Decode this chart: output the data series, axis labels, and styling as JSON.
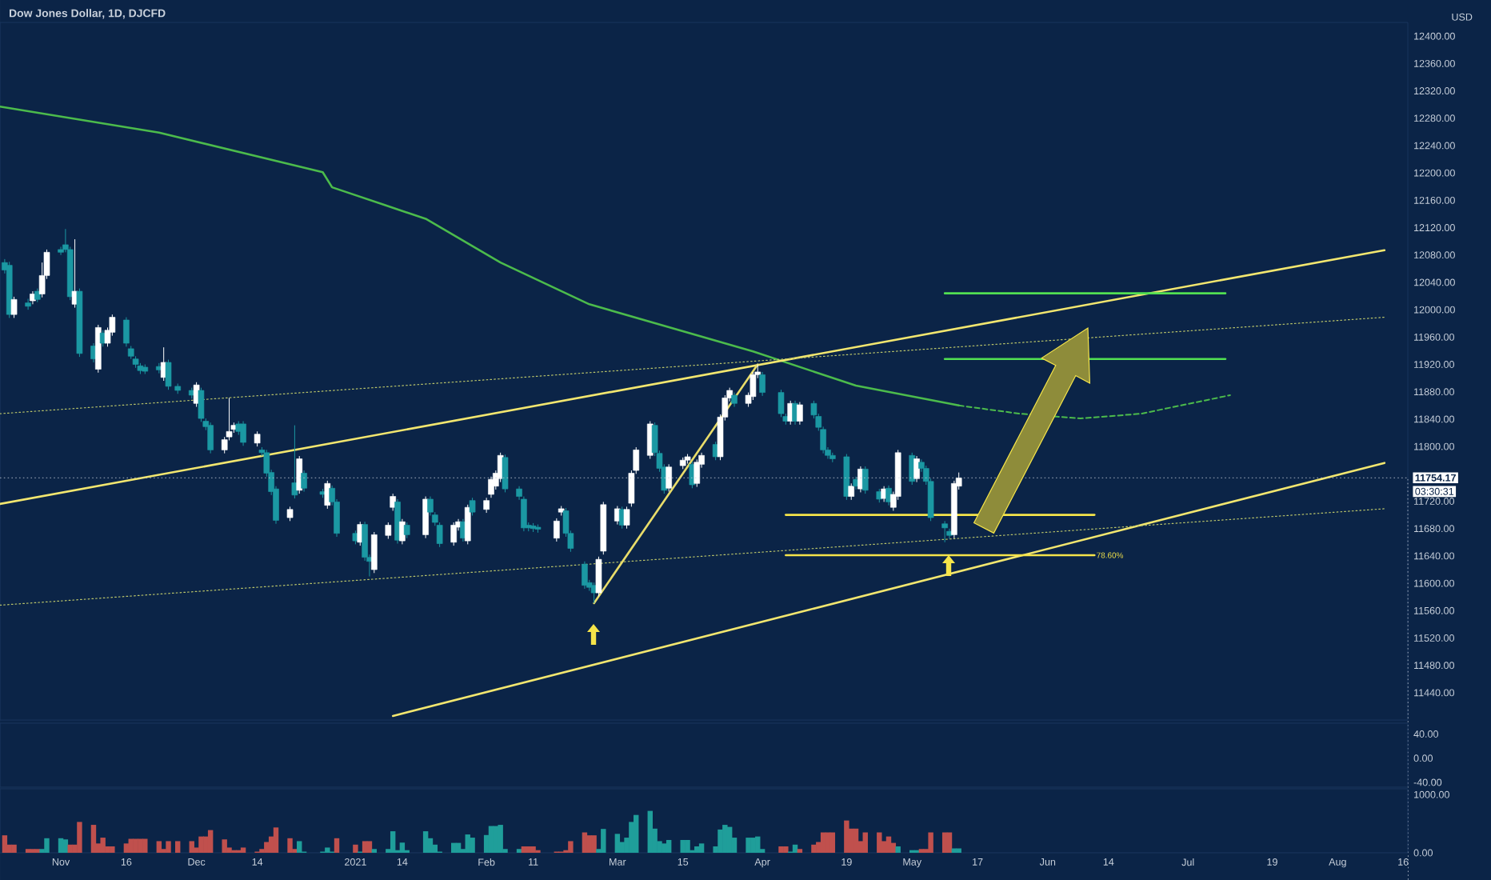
{
  "chart_data": [
    {
      "type": "candlestick",
      "title": "Dow Jones Dollar, 1D, DJCFD",
      "ylabel": "USD",
      "x": [
        "2020-10-21",
        "2020-10-22",
        "2020-10-23",
        "2020-10-26",
        "2020-10-27",
        "2020-10-28",
        "2020-10-29",
        "2020-10-30",
        "2020-11-02",
        "2020-11-03",
        "2020-11-04",
        "2020-11-05",
        "2020-11-06",
        "2020-11-09",
        "2020-11-10",
        "2020-11-11",
        "2020-11-12",
        "2020-11-13",
        "2020-11-16",
        "2020-11-17",
        "2020-11-18",
        "2020-11-19",
        "2020-11-20",
        "2020-11-23",
        "2020-11-24",
        "2020-11-25",
        "2020-11-27",
        "2020-11-30",
        "2020-12-01",
        "2020-12-02",
        "2020-12-03",
        "2020-12-04",
        "2020-12-07",
        "2020-12-08",
        "2020-12-09",
        "2020-12-10",
        "2020-12-11",
        "2020-12-14",
        "2020-12-15",
        "2020-12-16",
        "2020-12-17",
        "2020-12-18",
        "2020-12-21",
        "2020-12-22",
        "2020-12-23",
        "2020-12-24",
        "2020-12-28",
        "2020-12-29",
        "2020-12-30",
        "2020-12-31",
        "2021-01-04",
        "2021-01-05",
        "2021-01-06",
        "2021-01-07",
        "2021-01-08",
        "2021-01-11",
        "2021-01-12",
        "2021-01-13",
        "2021-01-14",
        "2021-01-15",
        "2021-01-19",
        "2021-01-20",
        "2021-01-21",
        "2021-01-22",
        "2021-01-25",
        "2021-01-26",
        "2021-01-27",
        "2021-01-28",
        "2021-01-29",
        "2021-02-01",
        "2021-02-02",
        "2021-02-03",
        "2021-02-04",
        "2021-02-05",
        "2021-02-08",
        "2021-02-09",
        "2021-02-10",
        "2021-02-11",
        "2021-02-12",
        "2021-02-16",
        "2021-02-17",
        "2021-02-18",
        "2021-02-19",
        "2021-02-22",
        "2021-02-23",
        "2021-02-24",
        "2021-02-25",
        "2021-02-26",
        "2021-03-01",
        "2021-03-02",
        "2021-03-03",
        "2021-03-04",
        "2021-03-05",
        "2021-03-08",
        "2021-03-09",
        "2021-03-10",
        "2021-03-11",
        "2021-03-12",
        "2021-03-15",
        "2021-03-16",
        "2021-03-17",
        "2021-03-18",
        "2021-03-19",
        "2021-03-22",
        "2021-03-23",
        "2021-03-24",
        "2021-03-25",
        "2021-03-26",
        "2021-03-29",
        "2021-03-30",
        "2021-03-31",
        "2021-04-01",
        "2021-04-05",
        "2021-04-06",
        "2021-04-07",
        "2021-04-08",
        "2021-04-09",
        "2021-04-12",
        "2021-04-13",
        "2021-04-14",
        "2021-04-15",
        "2021-04-16",
        "2021-04-19",
        "2021-04-20",
        "2021-04-21",
        "2021-04-22",
        "2021-04-23",
        "2021-04-26",
        "2021-04-27",
        "2021-04-28",
        "2021-04-29",
        "2021-04-30",
        "2021-05-03",
        "2021-05-04",
        "2021-05-05",
        "2021-05-06",
        "2021-05-07",
        "2021-05-10",
        "2021-05-11",
        "2021-05-12",
        "2021-05-13"
      ],
      "ohlc": [
        [
          12069,
          12074,
          12053,
          12058
        ],
        [
          12065,
          12070,
          11988,
          11993
        ],
        [
          11993,
          12019,
          11988,
          12015
        ],
        [
          12010,
          12016,
          12000,
          12005
        ],
        [
          12013,
          12027,
          12008,
          12023
        ],
        [
          12027,
          12031,
          12011,
          12015
        ],
        [
          12023,
          12069,
          12018,
          12050
        ],
        [
          12050,
          12088,
          12045,
          12084
        ],
        [
          12088,
          12092,
          12080,
          12084
        ],
        [
          12095,
          12118,
          12084,
          12088
        ],
        [
          12088,
          12092,
          12014,
          12019
        ],
        [
          12008,
          12103,
          12003,
          12027
        ],
        [
          12027,
          12031,
          11931,
          11936
        ],
        [
          11947,
          11951,
          11923,
          11928
        ],
        [
          11913,
          11978,
          11908,
          11974
        ],
        [
          11966,
          11970,
          11946,
          11951
        ],
        [
          11951,
          11974,
          11946,
          11970
        ],
        [
          11967,
          11993,
          11962,
          11989
        ],
        [
          11985,
          11989,
          11946,
          11951
        ],
        [
          11943,
          11947,
          11928,
          11932
        ],
        [
          11928,
          11932,
          11915,
          11920
        ],
        [
          11918,
          11922,
          11906,
          11911
        ],
        [
          11916,
          11920,
          11906,
          11910
        ],
        [
          11917,
          11922,
          11907,
          11912
        ],
        [
          11901,
          11945,
          11896,
          11923
        ],
        [
          11923,
          11927,
          11883,
          11888
        ],
        [
          11888,
          11892,
          11877,
          11882
        ],
        [
          11882,
          11886,
          11870,
          11875
        ],
        [
          11863,
          11894,
          11858,
          11890
        ],
        [
          11882,
          11886,
          11836,
          11841
        ],
        [
          11837,
          11841,
          11824,
          11829
        ],
        [
          11831,
          11835,
          11790,
          11795
        ],
        [
          11795,
          11814,
          11790,
          11810
        ],
        [
          11814,
          11871,
          11809,
          11822
        ],
        [
          11825,
          11835,
          11820,
          11831
        ],
        [
          11833,
          11837,
          11817,
          11822
        ],
        [
          11833,
          11837,
          11801,
          11806
        ],
        [
          11805,
          11822,
          11800,
          11818
        ],
        [
          11795,
          11799,
          11786,
          11791
        ],
        [
          11791,
          11795,
          11756,
          11761
        ],
        [
          11762,
          11766,
          11729,
          11734
        ],
        [
          11738,
          11742,
          11687,
          11692
        ],
        [
          11696,
          11712,
          11691,
          11708
        ],
        [
          11747,
          11831,
          11724,
          11729
        ],
        [
          11736,
          11786,
          11731,
          11782
        ],
        [
          11761,
          11765,
          11734,
          11739
        ],
        [
          11734,
          11738,
          11725,
          11730
        ],
        [
          11714,
          11750,
          11709,
          11746
        ],
        [
          11739,
          11743,
          11714,
          11719
        ],
        [
          11719,
          11723,
          11668,
          11673
        ],
        [
          11673,
          11677,
          11657,
          11662
        ],
        [
          11660,
          11690,
          11655,
          11686
        ],
        [
          11686,
          11690,
          11633,
          11638
        ],
        [
          11638,
          11642,
          11610,
          11632
        ],
        [
          11620,
          11675,
          11615,
          11671
        ],
        [
          11670,
          11689,
          11665,
          11685
        ],
        [
          11711,
          11731,
          11706,
          11727
        ],
        [
          11719,
          11723,
          11658,
          11663
        ],
        [
          11662,
          11694,
          11657,
          11690
        ],
        [
          11685,
          11689,
          11666,
          11671
        ],
        [
          11671,
          11727,
          11666,
          11723
        ],
        [
          11723,
          11727,
          11699,
          11704
        ],
        [
          11700,
          11704,
          11684,
          11689
        ],
        [
          11685,
          11689,
          11653,
          11658
        ],
        [
          11660,
          11689,
          11655,
          11685
        ],
        [
          11682,
          11694,
          11677,
          11690
        ],
        [
          11690,
          11694,
          11661,
          11666
        ],
        [
          11662,
          11715,
          11657,
          11711
        ],
        [
          11721,
          11725,
          11699,
          11704
        ],
        [
          11708,
          11725,
          11703,
          11721
        ],
        [
          11730,
          11756,
          11725,
          11752
        ],
        [
          11742,
          11765,
          11737,
          11761
        ],
        [
          11753,
          11791,
          11748,
          11787
        ],
        [
          11784,
          11788,
          11733,
          11738
        ],
        [
          11738,
          11742,
          11722,
          11727
        ],
        [
          11723,
          11727,
          11676,
          11681
        ],
        [
          11685,
          11689,
          11676,
          11681
        ],
        [
          11684,
          11688,
          11675,
          11680
        ],
        [
          11682,
          11686,
          11674,
          11679
        ],
        [
          11666,
          11695,
          11661,
          11691
        ],
        [
          11704,
          11713,
          11699,
          11709
        ],
        [
          11706,
          11710,
          11668,
          11673
        ],
        [
          11673,
          11677,
          11646,
          11651
        ],
        [
          11628,
          11632,
          11592,
          11597
        ],
        [
          11601,
          11605,
          11589,
          11594
        ],
        [
          11597,
          11601,
          11571,
          11586
        ],
        [
          11586,
          11639,
          11581,
          11635
        ],
        [
          11647,
          11719,
          11642,
          11715
        ],
        [
          11691,
          11713,
          11686,
          11709
        ],
        [
          11708,
          11712,
          11680,
          11685
        ],
        [
          11685,
          11712,
          11680,
          11708
        ],
        [
          11717,
          11765,
          11712,
          11761
        ],
        [
          11765,
          11799,
          11760,
          11795
        ],
        [
          11787,
          11837,
          11782,
          11833
        ],
        [
          11831,
          11835,
          11786,
          11791
        ],
        [
          11790,
          11794,
          11763,
          11768
        ],
        [
          11770,
          11774,
          11731,
          11736
        ],
        [
          11739,
          11774,
          11734,
          11770
        ],
        [
          11772,
          11784,
          11767,
          11780
        ],
        [
          11780,
          11789,
          11775,
          11785
        ],
        [
          11774,
          11778,
          11739,
          11744
        ],
        [
          11746,
          11781,
          11741,
          11777
        ],
        [
          11774,
          11791,
          11769,
          11787
        ],
        [
          11803,
          11807,
          11780,
          11785
        ],
        [
          11785,
          11847,
          11780,
          11843
        ],
        [
          11843,
          11875,
          11838,
          11871
        ],
        [
          11871,
          11886,
          11866,
          11882
        ],
        [
          11875,
          11879,
          11858,
          11863
        ],
        [
          11863,
          11879,
          11858,
          11875
        ],
        [
          11873,
          11909,
          11868,
          11905
        ],
        [
          11905,
          11920,
          11900,
          11909
        ],
        [
          11905,
          11909,
          11874,
          11879
        ],
        [
          11879,
          11883,
          11843,
          11848
        ],
        [
          11844,
          11848,
          11832,
          11837
        ],
        [
          11837,
          11867,
          11832,
          11863
        ],
        [
          11863,
          11867,
          11832,
          11837
        ],
        [
          11837,
          11865,
          11832,
          11861
        ],
        [
          11863,
          11867,
          11841,
          11846
        ],
        [
          11844,
          11848,
          11823,
          11828
        ],
        [
          11825,
          11829,
          11790,
          11795
        ],
        [
          11795,
          11799,
          11782,
          11787
        ],
        [
          11787,
          11791,
          11777,
          11782
        ],
        [
          11785,
          11789,
          11722,
          11727
        ],
        [
          11727,
          11746,
          11722,
          11742
        ],
        [
          11752,
          11756,
          11737,
          11742
        ],
        [
          11738,
          11771,
          11733,
          11767
        ],
        [
          11767,
          11771,
          11731,
          11736
        ],
        [
          11734,
          11738,
          11718,
          11723
        ],
        [
          11724,
          11742,
          11719,
          11738
        ],
        [
          11739,
          11743,
          11714,
          11719
        ],
        [
          11711,
          11734,
          11706,
          11730
        ],
        [
          11727,
          11795,
          11722,
          11791
        ],
        [
          11787,
          11791,
          11744,
          11749
        ],
        [
          11753,
          11786,
          11748,
          11782
        ],
        [
          11777,
          11781,
          11763,
          11768
        ],
        [
          11768,
          11772,
          11744,
          11749
        ],
        [
          11749,
          11753,
          11691,
          11696
        ],
        [
          11687,
          11691,
          11660,
          11681
        ],
        [
          11676,
          11680,
          11665,
          11670
        ],
        [
          11671,
          11750,
          11666,
          11746
        ],
        [
          11742,
          11762,
          11737,
          11754
        ]
      ],
      "colors": [
        "#1b98a3",
        "#1b98a3",
        "#ffffff",
        "#1b98a3",
        "#ffffff",
        "#1b98a3",
        "#ffffff",
        "#ffffff",
        "#1b98a3",
        "#1b98a3",
        "#1b98a3",
        "#ffffff",
        "#1b98a3",
        "#1b98a3",
        "#ffffff",
        "#1b98a3",
        "#ffffff",
        "#ffffff",
        "#1b98a3",
        "#1b98a3",
        "#1b98a3",
        "#1b98a3",
        "#1b98a3",
        "#1b98a3",
        "#ffffff",
        "#1b98a3",
        "#1b98a3",
        "#1b98a3",
        "#ffffff",
        "#1b98a3",
        "#1b98a3",
        "#1b98a3",
        "#ffffff",
        "#ffffff",
        "#ffffff",
        "#1b98a3",
        "#1b98a3",
        "#ffffff",
        "#1b98a3",
        "#1b98a3",
        "#1b98a3",
        "#1b98a3",
        "#ffffff",
        "#1b98a3",
        "#ffffff",
        "#1b98a3",
        "#1b98a3",
        "#ffffff",
        "#1b98a3",
        "#1b98a3",
        "#1b98a3",
        "#ffffff",
        "#1b98a3",
        "#1b98a3",
        "#ffffff",
        "#ffffff",
        "#ffffff",
        "#1b98a3",
        "#ffffff",
        "#1b98a3",
        "#ffffff",
        "#1b98a3",
        "#1b98a3",
        "#1b98a3",
        "#ffffff",
        "#ffffff",
        "#1b98a3",
        "#ffffff",
        "#1b98a3",
        "#ffffff",
        "#ffffff",
        "#ffffff",
        "#ffffff",
        "#1b98a3",
        "#1b98a3",
        "#1b98a3",
        "#1b98a3",
        "#1b98a3",
        "#1b98a3",
        "#ffffff",
        "#ffffff",
        "#1b98a3",
        "#1b98a3",
        "#1b98a3",
        "#1b98a3",
        "#1b98a3",
        "#ffffff",
        "#ffffff",
        "#ffffff",
        "#1b98a3",
        "#ffffff",
        "#ffffff",
        "#ffffff",
        "#ffffff",
        "#1b98a3",
        "#1b98a3",
        "#1b98a3",
        "#ffffff",
        "#ffffff",
        "#ffffff",
        "#1b98a3",
        "#ffffff",
        "#ffffff",
        "#1b98a3",
        "#ffffff",
        "#ffffff",
        "#ffffff",
        "#1b98a3",
        "#ffffff",
        "#ffffff",
        "#ffffff",
        "#1b98a3",
        "#1b98a3",
        "#1b98a3",
        "#ffffff",
        "#1b98a3",
        "#ffffff",
        "#1b98a3",
        "#1b98a3",
        "#1b98a3",
        "#1b98a3",
        "#1b98a3",
        "#1b98a3",
        "#ffffff",
        "#1b98a3",
        "#ffffff",
        "#1b98a3",
        "#1b98a3",
        "#ffffff",
        "#1b98a3",
        "#ffffff",
        "#ffffff",
        "#1b98a3",
        "#ffffff",
        "#1b98a3",
        "#1b98a3",
        "#1b98a3",
        "#1b98a3",
        "#1b98a3",
        "#ffffff",
        "#ffffff"
      ],
      "xlim": [
        "2020-10-20",
        "2021-08-17"
      ],
      "ylim": [
        11400,
        12420
      ],
      "yticks": [
        {
          "value": 11440,
          "label": "11440.00"
        },
        {
          "value": 11480,
          "label": "11480.00"
        },
        {
          "value": 11520,
          "label": "11520.00"
        },
        {
          "value": 11560,
          "label": "11560.00"
        },
        {
          "value": 11600,
          "label": "11600.00"
        },
        {
          "value": 11640,
          "label": "11640.00"
        },
        {
          "value": 11680,
          "label": "11680.00"
        },
        {
          "value": 11720,
          "label": "11720.00"
        },
        {
          "value": 11800,
          "label": "11800.00"
        },
        {
          "value": 11840,
          "label": "11840.00"
        },
        {
          "value": 11880,
          "label": "11880.00"
        },
        {
          "value": 11920,
          "label": "11920.00"
        },
        {
          "value": 11960,
          "label": "11960.00"
        },
        {
          "value": 12000,
          "label": "12000.00"
        },
        {
          "value": 12040,
          "label": "12040.00"
        },
        {
          "value": 12080,
          "label": "12080.00"
        },
        {
          "value": 12120,
          "label": "12120.00"
        },
        {
          "value": 12160,
          "label": "12160.00"
        },
        {
          "value": 12200,
          "label": "12200.00"
        },
        {
          "value": 12240,
          "label": "12240.00"
        },
        {
          "value": 12280,
          "label": "12280.00"
        },
        {
          "value": 12320,
          "label": "12320.00"
        },
        {
          "value": 12360,
          "label": "12360.00"
        },
        {
          "value": 12400,
          "label": "12400.00"
        }
      ],
      "tick_labels": "y",
      "series": [
        {
          "type": "line",
          "color": "#4cbb4c",
          "line_style": "solid",
          "x": [
            "2020-10-20",
            "2020-11-23",
            "2020-12-28",
            "2020-12-30",
            "2021-01-19",
            "2021-02-04",
            "2021-02-23",
            "2021-03-30",
            "2021-04-21",
            "2021-05-13"
          ],
          "values": [
            12297,
            12259,
            12201,
            12179,
            12133,
            12069,
            12008,
            11939,
            11889,
            11860
          ]
        },
        {
          "type": "line",
          "color": "#4cbb4c",
          "line_style": "dashed",
          "x": [
            "2021-05-13",
            "2021-05-26",
            "2021-06-08",
            "2021-06-21",
            "2021-07-10"
          ],
          "values": [
            11860,
            11848,
            11841,
            11848,
            11875
          ]
        },
        {
          "type": "line",
          "color": "#f2e66f",
          "line_style": "solid",
          "x": [
            "2020-10-20",
            "2021-08-12"
          ],
          "values": [
            11716,
            12087
          ]
        },
        {
          "type": "line",
          "color": "#f2e66f",
          "line_style": "solid",
          "x": [
            "2021-01-12",
            "2021-08-12"
          ],
          "values": [
            11406,
            11776
          ]
        },
        {
          "type": "line",
          "color": "#b9c46a",
          "line_style": "dotted",
          "x": [
            "2020-10-20",
            "2021-08-12"
          ],
          "values": [
            11848,
            11989
          ]
        },
        {
          "type": "line",
          "color": "#b9c46a",
          "line_style": "dotted",
          "x": [
            "2020-10-20",
            "2021-08-12"
          ],
          "values": [
            11568,
            11709
          ]
        },
        {
          "type": "line",
          "color": "#e8dc6a",
          "line_style": "solid",
          "x": [
            "2021-02-24",
            "2021-03-31"
          ],
          "values": [
            11571,
            11920
          ]
        },
        {
          "type": "line",
          "color": "#52e052",
          "line_style": "solid",
          "x": [
            "2021-05-10",
            "2021-07-09"
          ],
          "values": [
            12024,
            12024
          ]
        },
        {
          "type": "line",
          "color": "#52e052",
          "line_style": "solid",
          "x": [
            "2021-05-10",
            "2021-07-09"
          ],
          "values": [
            11928,
            11928
          ]
        },
        {
          "type": "line",
          "color": "#f5e44a",
          "line_style": "solid",
          "x": [
            "2021-04-06",
            "2021-06-11"
          ],
          "values": [
            11700,
            11700
          ]
        },
        {
          "type": "line",
          "color": "#f5e44a",
          "line_style": "solid",
          "x": [
            "2021-04-06",
            "2021-06-11"
          ],
          "values": [
            11641,
            11641
          ]
        }
      ],
      "ref_lines": [
        {
          "axis": "y",
          "value": 11754.17,
          "label": "11754.17"
        }
      ],
      "annotations": [
        {
          "text": "78.60%",
          "x": "2021-06-11",
          "y": 11641
        },
        "03:30:31"
      ]
    },
    {
      "type": "line",
      "xlim": [
        "2020-10-20",
        "2021-08-17"
      ],
      "ylim": [
        -48,
        58
      ],
      "yticks": [
        {
          "value": 40,
          "label": "40.00"
        },
        {
          "value": 0,
          "label": "0.00"
        },
        {
          "value": -40,
          "label": "-40.00"
        }
      ],
      "tick_labels": "y"
    },
    {
      "type": "bar",
      "x": [
        "2020-10-21",
        "2020-10-22",
        "2020-10-23",
        "2020-10-26",
        "2020-10-27",
        "2020-10-28",
        "2020-10-29",
        "2020-10-30",
        "2020-11-02",
        "2020-11-03",
        "2020-11-04",
        "2020-11-05",
        "2020-11-06",
        "2020-11-09",
        "2020-11-10",
        "2020-11-11",
        "2020-11-12",
        "2020-11-13",
        "2020-11-16",
        "2020-11-17",
        "2020-11-18",
        "2020-11-19",
        "2020-11-20",
        "2020-11-23",
        "2020-11-24",
        "2020-11-25",
        "2020-11-27",
        "2020-11-30",
        "2020-12-01",
        "2020-12-02",
        "2020-12-03",
        "2020-12-04",
        "2020-12-07",
        "2020-12-08",
        "2020-12-09",
        "2020-12-10",
        "2020-12-11",
        "2020-12-14",
        "2020-12-15",
        "2020-12-16",
        "2020-12-17",
        "2020-12-18",
        "2020-12-21",
        "2020-12-22",
        "2020-12-23",
        "2020-12-24",
        "2020-12-28",
        "2020-12-29",
        "2020-12-30",
        "2020-12-31",
        "2021-01-04",
        "2021-01-05",
        "2021-01-06",
        "2021-01-07",
        "2021-01-08",
        "2021-01-11",
        "2021-01-12",
        "2021-01-13",
        "2021-01-14",
        "2021-01-15",
        "2021-01-19",
        "2021-01-20",
        "2021-01-21",
        "2021-01-22",
        "2021-01-25",
        "2021-01-26",
        "2021-01-27",
        "2021-01-28",
        "2021-01-29",
        "2021-02-01",
        "2021-02-02",
        "2021-02-03",
        "2021-02-04",
        "2021-02-05",
        "2021-02-08",
        "2021-02-09",
        "2021-02-10",
        "2021-02-11",
        "2021-02-12",
        "2021-02-16",
        "2021-02-17",
        "2021-02-18",
        "2021-02-19",
        "2021-02-22",
        "2021-02-23",
        "2021-02-24",
        "2021-02-25",
        "2021-02-26",
        "2021-03-01",
        "2021-03-02",
        "2021-03-03",
        "2021-03-04",
        "2021-03-05",
        "2021-03-08",
        "2021-03-09",
        "2021-03-10",
        "2021-03-11",
        "2021-03-12",
        "2021-03-15",
        "2021-03-16",
        "2021-03-17",
        "2021-03-18",
        "2021-03-19",
        "2021-03-22",
        "2021-03-23",
        "2021-03-24",
        "2021-03-25",
        "2021-03-26",
        "2021-03-29",
        "2021-03-30",
        "2021-03-31",
        "2021-04-01",
        "2021-04-05",
        "2021-04-06",
        "2021-04-07",
        "2021-04-08",
        "2021-04-09",
        "2021-04-12",
        "2021-04-13",
        "2021-04-14",
        "2021-04-15",
        "2021-04-16",
        "2021-04-19",
        "2021-04-20",
        "2021-04-21",
        "2021-04-22",
        "2021-04-23",
        "2021-04-26",
        "2021-04-27",
        "2021-04-28",
        "2021-04-29",
        "2021-04-30",
        "2021-05-03",
        "2021-05-04",
        "2021-05-05",
        "2021-05-06",
        "2021-05-07",
        "2021-05-10",
        "2021-05-11",
        "2021-05-12",
        "2021-05-13"
      ],
      "values": [
        300,
        140,
        140,
        65,
        65,
        65,
        65,
        250,
        250,
        230,
        140,
        140,
        530,
        480,
        160,
        260,
        110,
        110,
        160,
        240,
        240,
        240,
        240,
        200,
        65,
        200,
        200,
        200,
        90,
        280,
        280,
        390,
        230,
        90,
        45,
        45,
        90,
        20,
        65,
        185,
        280,
        435,
        250,
        65,
        200,
        20,
        20,
        90,
        20,
        250,
        140,
        20,
        200,
        200,
        65,
        65,
        370,
        45,
        175,
        45,
        370,
        250,
        140,
        20,
        170,
        170,
        65,
        315,
        260,
        305,
        460,
        460,
        480,
        65,
        65,
        110,
        110,
        110,
        45,
        20,
        20,
        45,
        200,
        350,
        300,
        300,
        65,
        410,
        325,
        185,
        260,
        530,
        650,
        720,
        415,
        200,
        160,
        220,
        220,
        220,
        45,
        110,
        160,
        110,
        400,
        480,
        445,
        260,
        260,
        260,
        280,
        65,
        110,
        110,
        20,
        140,
        65,
        140,
        185,
        350,
        350,
        350,
        555,
        415,
        415,
        200,
        350,
        350,
        200,
        280,
        170,
        110,
        45,
        45,
        65,
        65,
        350,
        350,
        350,
        75,
        75
      ],
      "colors": [
        "#c0504d",
        "#c0504d",
        "#c0504d",
        "#c0504d",
        "#c0504d",
        "#c0504d",
        "#1f9e9a",
        "#1f9e9a",
        "#1f9e9a",
        "#1f9e9a",
        "#c0504d",
        "#c0504d",
        "#c0504d",
        "#c0504d",
        "#c0504d",
        "#c0504d",
        "#c0504d",
        "#c0504d",
        "#c0504d",
        "#c0504d",
        "#c0504d",
        "#c0504d",
        "#c0504d",
        "#c0504d",
        "#c0504d",
        "#c0504d",
        "#c0504d",
        "#c0504d",
        "#c0504d",
        "#c0504d",
        "#c0504d",
        "#c0504d",
        "#c0504d",
        "#c0504d",
        "#c0504d",
        "#c0504d",
        "#c0504d",
        "#c0504d",
        "#c0504d",
        "#c0504d",
        "#c0504d",
        "#c0504d",
        "#c0504d",
        "#c0504d",
        "#1f9e9a",
        "#1f9e9a",
        "#1f9e9a",
        "#1f9e9a",
        "#1f9e9a",
        "#c0504d",
        "#c0504d",
        "#1f9e9a",
        "#c0504d",
        "#c0504d",
        "#1f9e9a",
        "#1f9e9a",
        "#1f9e9a",
        "#1f9e9a",
        "#1f9e9a",
        "#1f9e9a",
        "#1f9e9a",
        "#1f9e9a",
        "#1f9e9a",
        "#1f9e9a",
        "#1f9e9a",
        "#1f9e9a",
        "#1f9e9a",
        "#1f9e9a",
        "#1f9e9a",
        "#1f9e9a",
        "#1f9e9a",
        "#1f9e9a",
        "#1f9e9a",
        "#1f9e9a",
        "#1f9e9a",
        "#c0504d",
        "#c0504d",
        "#c0504d",
        "#c0504d",
        "#c0504d",
        "#c0504d",
        "#c0504d",
        "#c0504d",
        "#c0504d",
        "#c0504d",
        "#c0504d",
        "#1f9e9a",
        "#1f9e9a",
        "#1f9e9a",
        "#1f9e9a",
        "#1f9e9a",
        "#1f9e9a",
        "#1f9e9a",
        "#1f9e9a",
        "#1f9e9a",
        "#1f9e9a",
        "#1f9e9a",
        "#1f9e9a",
        "#1f9e9a",
        "#1f9e9a",
        "#1f9e9a",
        "#1f9e9a",
        "#1f9e9a",
        "#1f9e9a",
        "#1f9e9a",
        "#1f9e9a",
        "#1f9e9a",
        "#1f9e9a",
        "#1f9e9a",
        "#1f9e9a",
        "#1f9e9a",
        "#1f9e9a",
        "#c0504d",
        "#c0504d",
        "#1f9e9a",
        "#1f9e9a",
        "#c0504d",
        "#c0504d",
        "#c0504d",
        "#c0504d",
        "#c0504d",
        "#c0504d",
        "#c0504d",
        "#c0504d",
        "#c0504d",
        "#c0504d",
        "#c0504d",
        "#c0504d",
        "#c0504d",
        "#c0504d",
        "#c0504d",
        "#1f9e9a",
        "#1f9e9a",
        "#1f9e9a",
        "#c0504d",
        "#c0504d",
        "#c0504d",
        "#c0504d",
        "#c0504d",
        "#1f9e9a",
        "#1f9e9a"
      ],
      "xlim": [
        "2020-10-20",
        "2021-08-17"
      ],
      "xticks": [
        {
          "value": "2020-11-02",
          "label": "Nov"
        },
        {
          "value": "2020-11-16",
          "label": "16"
        },
        {
          "value": "2020-12-01",
          "label": "Dec"
        },
        {
          "value": "2020-12-14",
          "label": "14"
        },
        {
          "value": "2021-01-04",
          "label": "2021"
        },
        {
          "value": "2021-01-14",
          "label": "14"
        },
        {
          "value": "2021-02-01",
          "label": "Feb"
        },
        {
          "value": "2021-02-11",
          "label": "11"
        },
        {
          "value": "2021-03-01",
          "label": "Mar"
        },
        {
          "value": "2021-03-15",
          "label": "15"
        },
        {
          "value": "2021-04-01",
          "label": "Apr"
        },
        {
          "value": "2021-04-19",
          "label": "19"
        },
        {
          "value": "2021-05-03",
          "label": "May"
        },
        {
          "value": "2021-05-17",
          "label": "17"
        },
        {
          "value": "2021-06-01",
          "label": "Jun"
        },
        {
          "value": "2021-06-14",
          "label": "14"
        },
        {
          "value": "2021-07-01",
          "label": "Jul"
        },
        {
          "value": "2021-07-19",
          "label": "19"
        },
        {
          "value": "2021-08-02",
          "label": "Aug"
        },
        {
          "value": "2021-08-16",
          "label": "16"
        }
      ],
      "ylim": [
        0,
        1100
      ],
      "yticks": [
        {
          "value": 0,
          "label": "0.00"
        },
        {
          "value": 1000,
          "label": "1000.00"
        }
      ]
    }
  ]
}
